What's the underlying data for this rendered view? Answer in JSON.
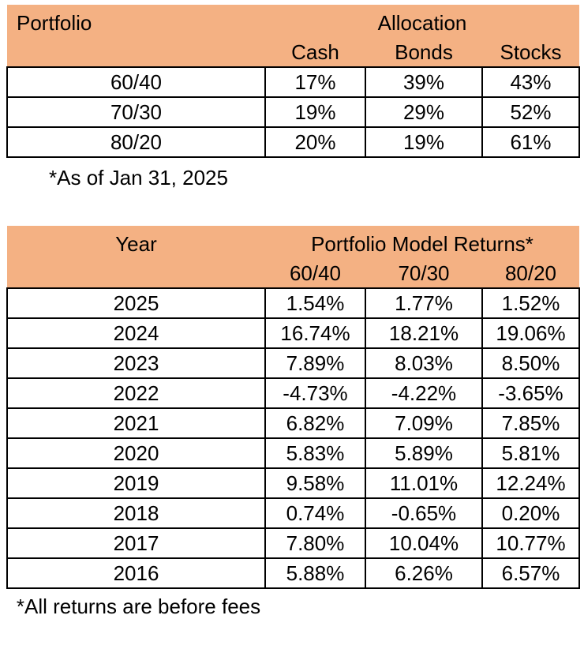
{
  "colors": {
    "header_bg": "#F4B183",
    "grid_border": "#000000",
    "text": "#000000",
    "background": "#FFFFFF"
  },
  "allocation_table": {
    "corner_label": "Portfolio",
    "group_header": "Allocation",
    "columns": [
      "Cash",
      "Bonds",
      "Stocks"
    ],
    "rows": [
      [
        "60/40",
        "17%",
        "39%",
        "43%"
      ],
      [
        "70/30",
        "19%",
        "29%",
        "52%"
      ],
      [
        "80/20",
        "20%",
        "19%",
        "61%"
      ]
    ],
    "footnote": "*As of Jan 31, 2025"
  },
  "returns_table": {
    "corner_label": "Year",
    "group_header": "Portfolio Model Returns*",
    "columns": [
      "60/40",
      "70/30",
      "80/20"
    ],
    "rows": [
      [
        "2025",
        "1.54%",
        "1.77%",
        "1.52%"
      ],
      [
        "2024",
        "16.74%",
        "18.21%",
        "19.06%"
      ],
      [
        "2023",
        "7.89%",
        "8.03%",
        "8.50%"
      ],
      [
        "2022",
        "-4.73%",
        "-4.22%",
        "-3.65%"
      ],
      [
        "2021",
        "6.82%",
        "7.09%",
        "7.85%"
      ],
      [
        "2020",
        "5.83%",
        "5.89%",
        "5.81%"
      ],
      [
        "2019",
        "9.58%",
        "11.01%",
        "12.24%"
      ],
      [
        "2018",
        "0.74%",
        "-0.65%",
        "0.20%"
      ],
      [
        "2017",
        "7.80%",
        "10.04%",
        "10.77%"
      ],
      [
        "2016",
        "5.88%",
        "6.26%",
        "6.57%"
      ]
    ],
    "footnote": "*All returns are before fees"
  }
}
